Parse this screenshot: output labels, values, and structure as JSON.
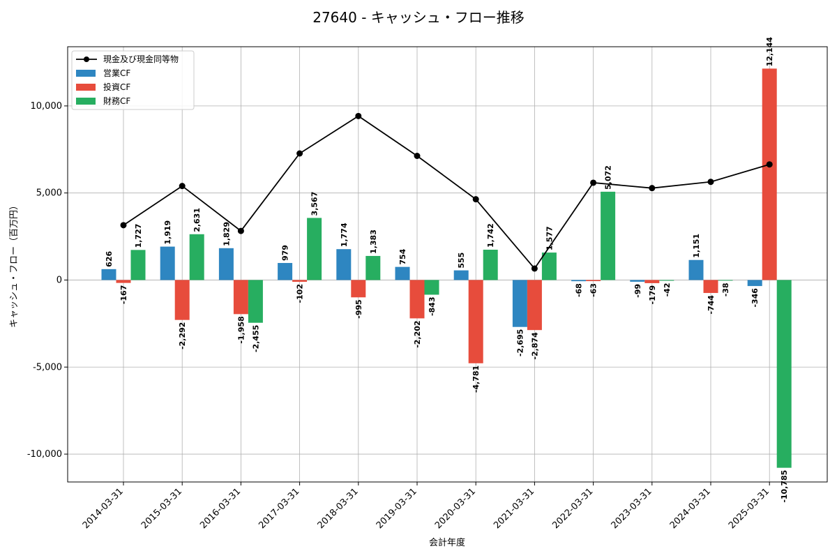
{
  "chart_data": {
    "type": "bar",
    "title": "27640 - キャッシュ・フロー推移",
    "xlabel": "会計年度",
    "ylabel": "キャッシュ・フロー（百万円）",
    "ylim": [
      -11600,
      13400
    ],
    "yticks": [
      -10000,
      -5000,
      0,
      5000,
      10000
    ],
    "ytick_labels": [
      "-10,000",
      "-5,000",
      "0",
      "5,000",
      "10,000"
    ],
    "grid": true,
    "legend_position": "top-left",
    "categories": [
      "2014-03-31",
      "2015-03-31",
      "2016-03-31",
      "2017-03-31",
      "2018-03-31",
      "2019-03-31",
      "2020-03-31",
      "2021-03-31",
      "2022-03-31",
      "2023-03-31",
      "2024-03-31",
      "2025-03-31"
    ],
    "series": [
      {
        "name": "営業CF",
        "kind": "bar",
        "color": "#2e86c1",
        "values": [
          626,
          1919,
          1829,
          979,
          1774,
          754,
          555,
          -2695,
          -68,
          -99,
          1151,
          -346
        ],
        "labels": [
          "626",
          "1,919",
          "1,829",
          "979",
          "1,774",
          "754",
          "555",
          "-2,695",
          "-68",
          "-99",
          "1,151",
          "-346"
        ]
      },
      {
        "name": "投資CF",
        "kind": "bar",
        "color": "#e74c3c",
        "values": [
          -167,
          -2292,
          -1958,
          -102,
          -995,
          -2202,
          -4781,
          -2874,
          -63,
          -179,
          -744,
          12144
        ],
        "labels": [
          "-167",
          "-2,292",
          "-1,958",
          "-102",
          "-995",
          "-2,202",
          "-4,781",
          "-2,874",
          "-63",
          "-179",
          "-744",
          "12,144"
        ]
      },
      {
        "name": "財務CF",
        "kind": "bar",
        "color": "#27ae60",
        "values": [
          1727,
          2631,
          -2455,
          3567,
          1383,
          -843,
          1742,
          1577,
          5072,
          -42,
          -38,
          -10785
        ],
        "labels": [
          "1,727",
          "2,631",
          "-2,455",
          "3,567",
          "1,383",
          "-843",
          "1,742",
          "1,577",
          "5,072",
          "-42",
          "-38",
          "-10,785"
        ]
      },
      {
        "name": "現金及び現金同等物",
        "kind": "line",
        "color": "#000000",
        "values": [
          3150,
          5400,
          2820,
          7270,
          9420,
          7130,
          4640,
          660,
          5590,
          5280,
          5640,
          6640
        ]
      }
    ]
  }
}
